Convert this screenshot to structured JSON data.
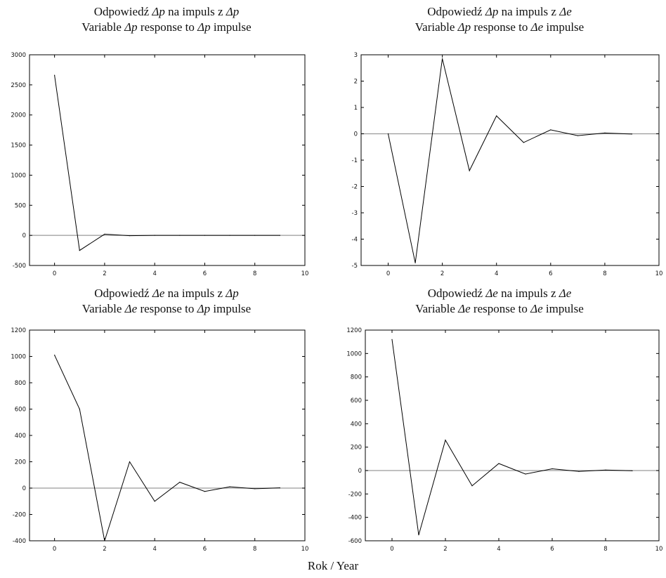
{
  "xlabel": "Rok / Year",
  "chart_data": [
    {
      "type": "line",
      "title_pl": [
        "Odpowiedź ",
        "Δp",
        " na impuls z ",
        "Δp"
      ],
      "title_en": [
        "Variable ",
        "Δp",
        " response to ",
        "Δp",
        " impulse"
      ],
      "xlim": [
        -1,
        10
      ],
      "ylim": [
        -500,
        3000
      ],
      "xticks": [
        0,
        2,
        4,
        6,
        8,
        10
      ],
      "yticks": [
        -500,
        0,
        500,
        1000,
        1500,
        2000,
        2500,
        3000
      ],
      "x": [
        0,
        1,
        2,
        3,
        4,
        5,
        6,
        7,
        8,
        9
      ],
      "values": [
        2660,
        -250,
        20,
        -5,
        0,
        0,
        0,
        0,
        0,
        0
      ]
    },
    {
      "type": "line",
      "title_pl": [
        "Odpowiedź ",
        "Δp",
        " na impuls z ",
        "Δe"
      ],
      "title_en": [
        "Variable ",
        "Δp",
        " response to ",
        "Δe",
        " impulse"
      ],
      "xlim": [
        -1,
        10
      ],
      "ylim": [
        -5,
        3
      ],
      "xticks": [
        0,
        2,
        4,
        6,
        8,
        10
      ],
      "yticks": [
        -5,
        -4,
        -3,
        -2,
        -1,
        0,
        1,
        2,
        3
      ],
      "x": [
        0,
        1,
        2,
        3,
        4,
        5,
        6,
        7,
        8,
        9
      ],
      "values": [
        0,
        -4.9,
        2.85,
        -1.4,
        0.68,
        -0.33,
        0.15,
        -0.07,
        0.03,
        -0.01
      ]
    },
    {
      "type": "line",
      "title_pl": [
        "Odpowiedź ",
        "Δe",
        " na impuls z ",
        "Δp"
      ],
      "title_en": [
        "Variable ",
        "Δe",
        " response to ",
        "Δp",
        " impulse"
      ],
      "xlim": [
        -1,
        10
      ],
      "ylim": [
        -400,
        1200
      ],
      "xticks": [
        0,
        2,
        4,
        6,
        8,
        10
      ],
      "yticks": [
        -400,
        -200,
        0,
        200,
        400,
        600,
        800,
        1000,
        1200
      ],
      "x": [
        0,
        1,
        2,
        3,
        4,
        5,
        6,
        7,
        8,
        9
      ],
      "values": [
        1010,
        600,
        -400,
        200,
        -100,
        45,
        -25,
        10,
        -5,
        2
      ]
    },
    {
      "type": "line",
      "title_pl": [
        "Odpowiedź ",
        "Δe",
        " na impuls z ",
        "Δe"
      ],
      "title_en": [
        "Variable ",
        "Δe",
        " response to ",
        "Δe",
        " impulse"
      ],
      "xlim": [
        -1,
        10
      ],
      "ylim": [
        -600,
        1200
      ],
      "xticks": [
        0,
        2,
        4,
        6,
        8,
        10
      ],
      "yticks": [
        -600,
        -400,
        -200,
        0,
        200,
        400,
        600,
        800,
        1000,
        1200
      ],
      "x": [
        0,
        1,
        2,
        3,
        4,
        5,
        6,
        7,
        8,
        9
      ],
      "values": [
        1120,
        -550,
        260,
        -130,
        60,
        -30,
        15,
        -8,
        4,
        -2
      ]
    }
  ]
}
